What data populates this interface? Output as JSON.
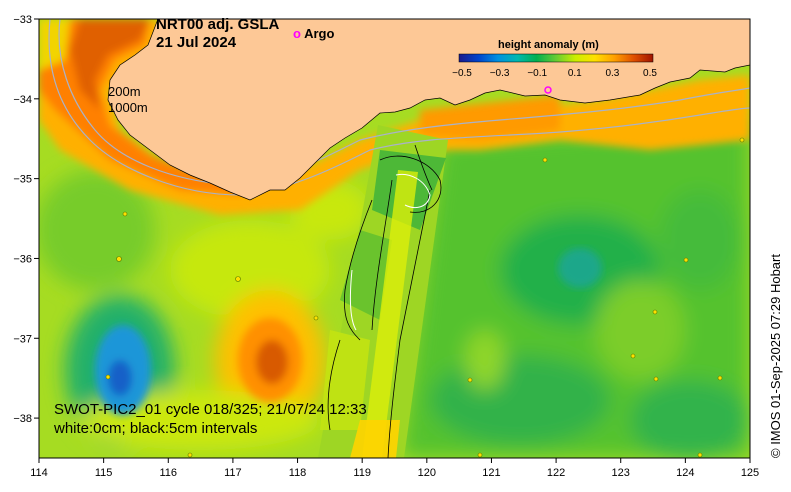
{
  "title": {
    "line1": "NRT00 adj. GSLA",
    "line2": "21 Jul 2024"
  },
  "legend_argo": {
    "marker": "o",
    "label": "Argo",
    "marker_color": "#ff00ff"
  },
  "depth_labels": [
    "200m",
    "1000m"
  ],
  "colorbar": {
    "title": "height anomaly (m)",
    "ticks": [
      "−0.5",
      "−0.3",
      "−0.1",
      "0.1",
      "0.3",
      "0.5"
    ],
    "colors": [
      "#1a1a8c",
      "#0044cc",
      "#0090e0",
      "#00b8b0",
      "#00b050",
      "#66cc33",
      "#ccee00",
      "#ffe000",
      "#ffa000",
      "#e05000",
      "#a01400"
    ]
  },
  "axes": {
    "x_ticks": [
      "114",
      "115",
      "116",
      "117",
      "118",
      "119",
      "120",
      "121",
      "122",
      "123",
      "124",
      "125"
    ],
    "y_ticks": [
      "−33",
      "−34",
      "−35",
      "−36",
      "−37",
      "−38"
    ],
    "lon_range": [
      114,
      125
    ],
    "lat_range": [
      -38.5,
      -33
    ]
  },
  "swot_info": {
    "line1": "SWOT-PIC2_01 cycle 018/325; 21/07/24 12:33",
    "line2": "white:0cm; black:5cm intervals"
  },
  "credit": "© IMOS 01-Sep-2025 07:29 Hobart",
  "colors": {
    "land": "#fdc896",
    "sea_base": "#aadd22"
  }
}
